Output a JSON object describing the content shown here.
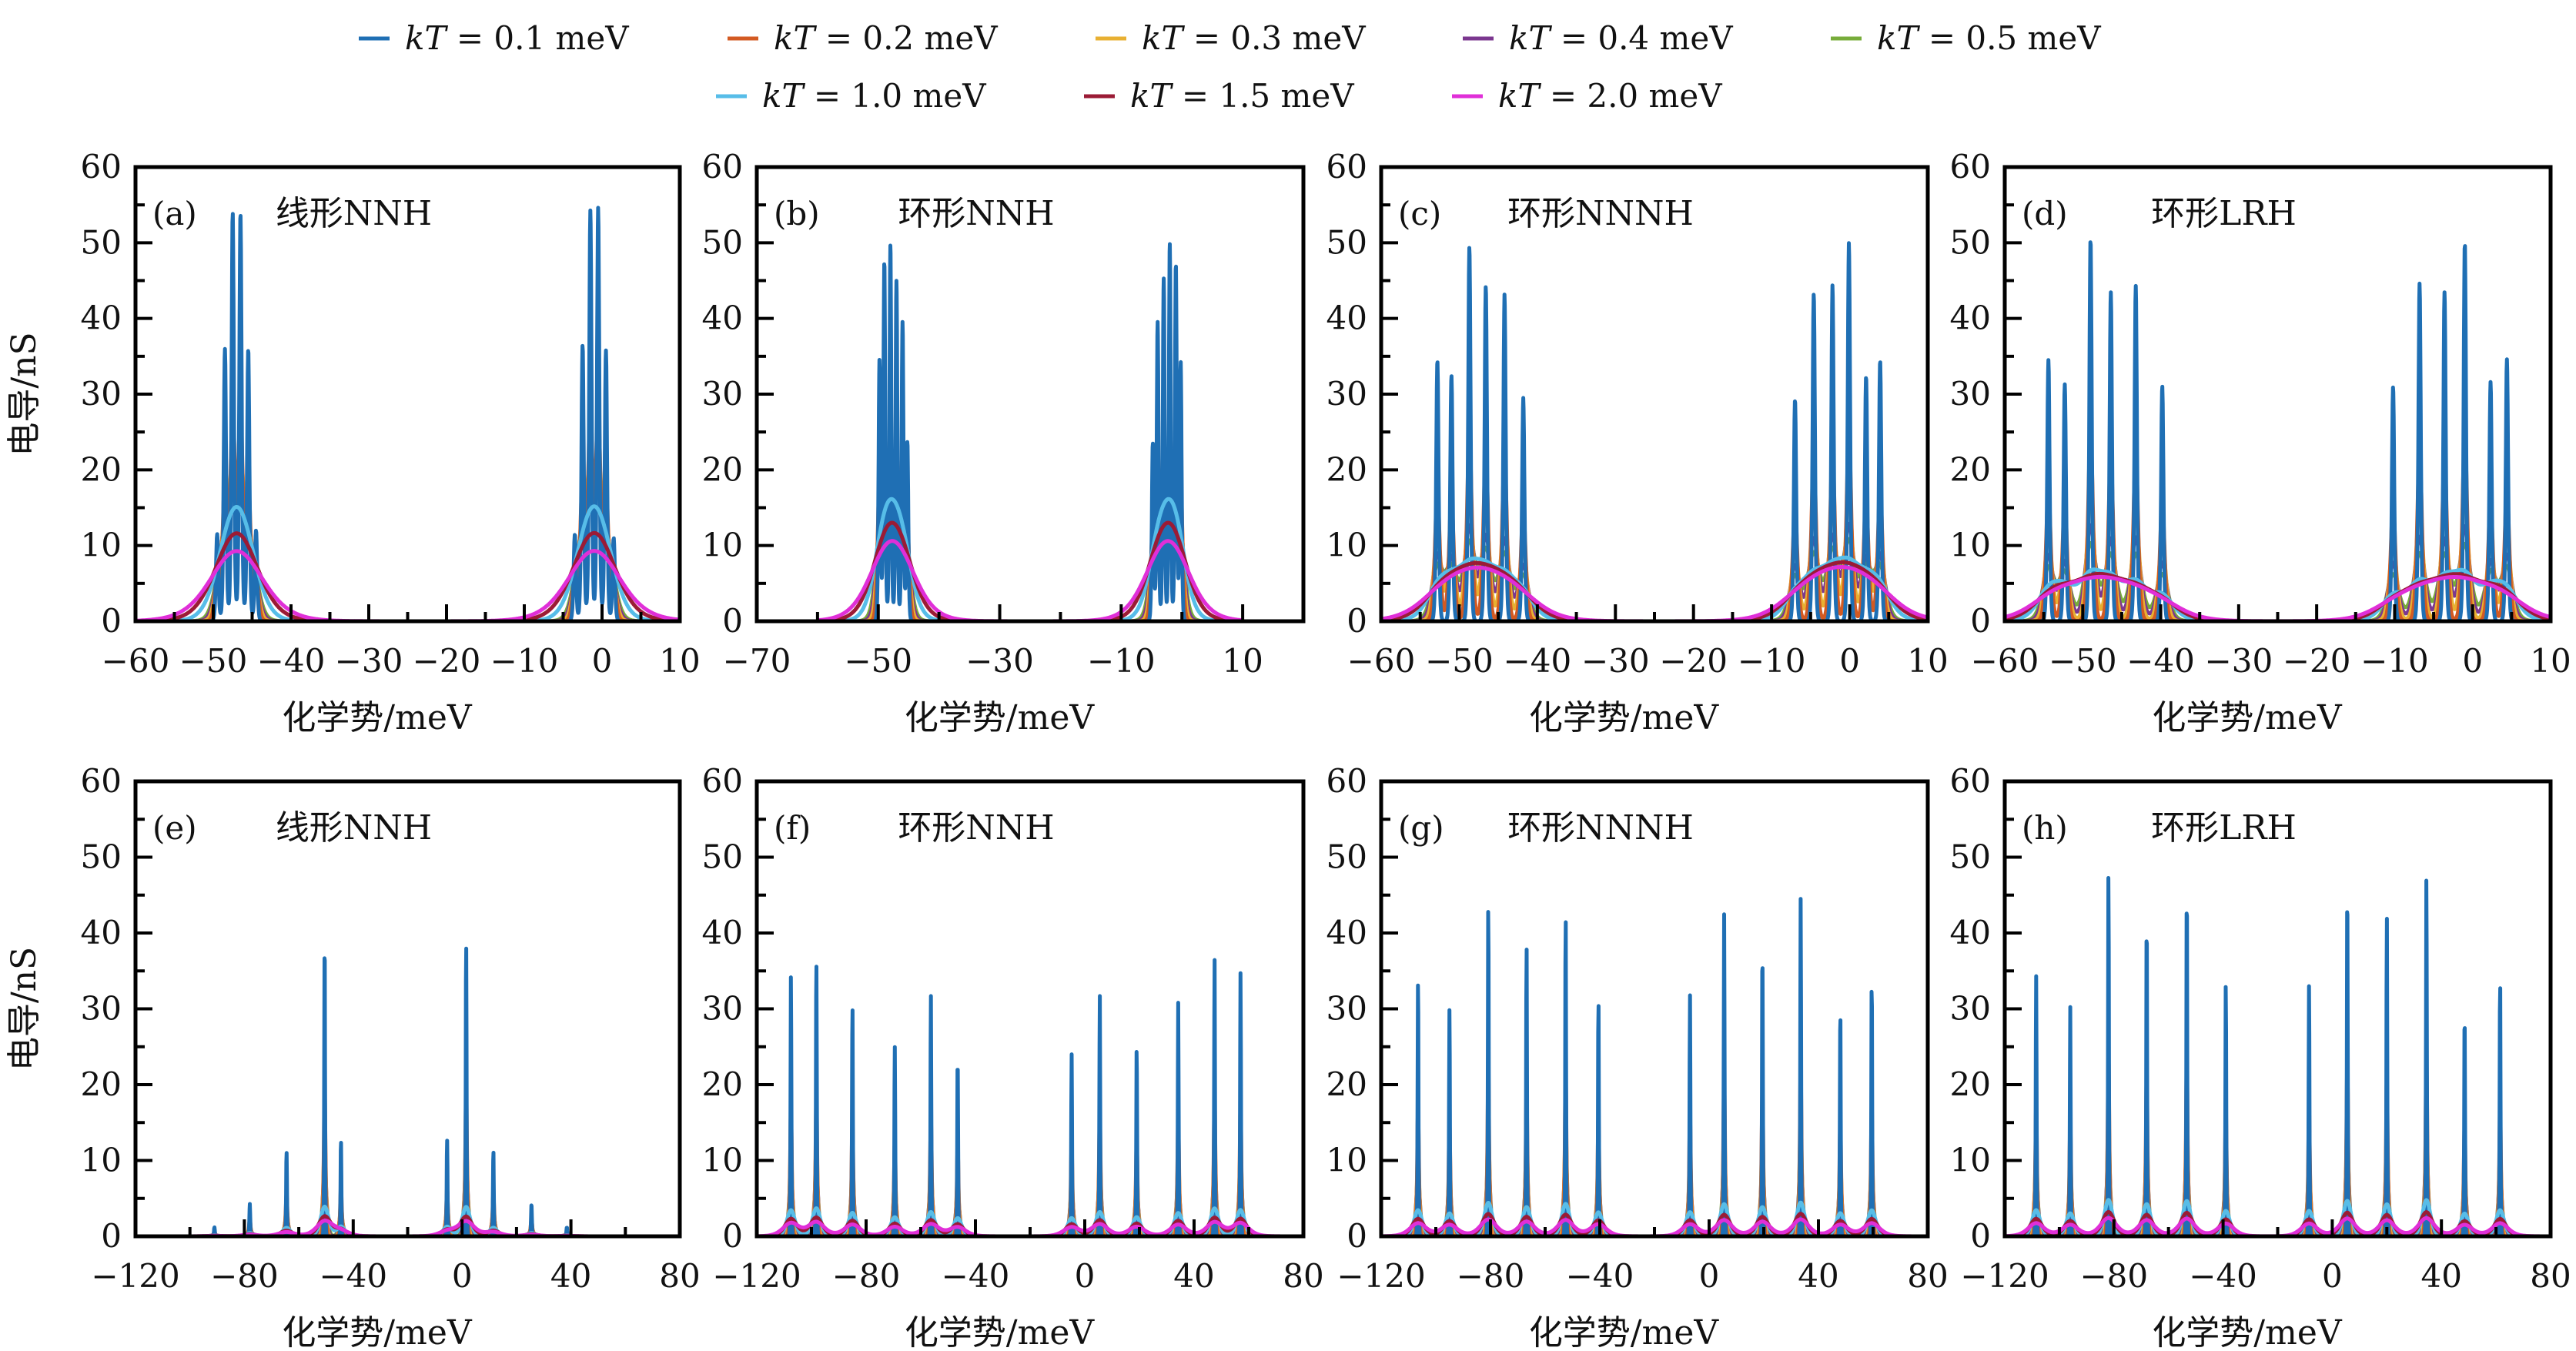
{
  "chart_data": {
    "type": "line",
    "title": "",
    "legend": {
      "placement": "top-center",
      "rows": [
        [
          0,
          1,
          2,
          3,
          4
        ],
        [
          5,
          6,
          7
        ]
      ]
    },
    "series_defs": [
      {
        "name": "kT = 0.1 meV",
        "kT_meV": 0.1,
        "color": "#1f6fb4"
      },
      {
        "name": "kT = 0.2 meV",
        "kT_meV": 0.2,
        "color": "#d35a22"
      },
      {
        "name": "kT = 0.3 meV",
        "kT_meV": 0.3,
        "color": "#e8b032"
      },
      {
        "name": "kT = 0.4 meV",
        "kT_meV": 0.4,
        "color": "#7b378f"
      },
      {
        "name": "kT = 0.5 meV",
        "kT_meV": 0.5,
        "color": "#77ac3a"
      },
      {
        "name": "kT = 1.0 meV",
        "kT_meV": 1.0,
        "color": "#57bde8"
      },
      {
        "name": "kT = 1.5 meV",
        "kT_meV": 1.5,
        "color": "#9b1b35"
      },
      {
        "name": "kT = 2.0 meV",
        "kT_meV": 2.0,
        "color": "#e02fd8"
      }
    ],
    "legend_parts": {
      "prefix": "kT",
      "equals": " = ",
      "unit": " meV"
    },
    "panels": [
      {
        "id": "a",
        "label": "(a)",
        "title": "线形NNH",
        "xlabel": "化学势/meV",
        "ylabel": "电导/nS",
        "xlim": [
          -60,
          10
        ],
        "ylim": [
          0,
          60
        ],
        "xticks": [
          -60,
          -50,
          -40,
          -30,
          -20,
          -10,
          0,
          10
        ],
        "xtick_labels": [
          "−60",
          "−50",
          "−40",
          "−30",
          "−20",
          "−10",
          "0",
          "10"
        ],
        "yticks": [
          0,
          10,
          20,
          30,
          40,
          50,
          60
        ],
        "ytick_labels": [
          "0",
          "10",
          "20",
          "30",
          "40",
          "50",
          "60"
        ],
        "curve_span": [
          -60,
          10
        ],
        "peaks_kT01": [
          {
            "x": -49.5,
            "y": 11.5
          },
          {
            "x": -48.5,
            "y": 36
          },
          {
            "x": -47.5,
            "y": 54
          },
          {
            "x": -46.5,
            "y": 54
          },
          {
            "x": -45.5,
            "y": 36
          },
          {
            "x": -44.5,
            "y": 12
          },
          {
            "x": -3.5,
            "y": 11.5
          },
          {
            "x": -2.5,
            "y": 36.5
          },
          {
            "x": -1.5,
            "y": 54.3
          },
          {
            "x": -0.5,
            "y": 54.6
          },
          {
            "x": 0.5,
            "y": 35.8
          },
          {
            "x": 1.5,
            "y": 11
          }
        ]
      },
      {
        "id": "b",
        "label": "(b)",
        "title": "环形NNH",
        "xlabel": "化学势/meV",
        "ylabel": "",
        "xlim": [
          -70,
          20
        ],
        "ylim": [
          0,
          60
        ],
        "xticks": [
          -70,
          -50,
          -30,
          -10,
          10
        ],
        "xtick_labels": [
          "−70",
          "−50",
          "−30",
          "−10",
          "10"
        ],
        "yticks": [
          0,
          10,
          20,
          30,
          40,
          50,
          60
        ],
        "ytick_labels": [
          "0",
          "10",
          "20",
          "30",
          "40",
          "50",
          "60"
        ],
        "curve_span": [
          -60,
          10
        ],
        "peaks_kT01": [
          {
            "x": -49.8,
            "y": 34.5
          },
          {
            "x": -49.0,
            "y": 47.5
          },
          {
            "x": -48.0,
            "y": 49.8
          },
          {
            "x": -47.0,
            "y": 45
          },
          {
            "x": -46.0,
            "y": 39.5
          },
          {
            "x": -45.2,
            "y": 23.7
          },
          {
            "x": -4.8,
            "y": 23.5
          },
          {
            "x": -4.0,
            "y": 39.5
          },
          {
            "x": -3.0,
            "y": 45.3
          },
          {
            "x": -2.0,
            "y": 50
          },
          {
            "x": -1.0,
            "y": 47.2
          },
          {
            "x": -0.2,
            "y": 34.2
          }
        ]
      },
      {
        "id": "c",
        "label": "(c)",
        "title": "环形NNNH",
        "xlabel": "化学势/meV",
        "ylabel": "",
        "xlim": [
          -60,
          10
        ],
        "ylim": [
          0,
          60
        ],
        "xticks": [
          -60,
          -50,
          -40,
          -30,
          -20,
          -10,
          0,
          10
        ],
        "xtick_labels": [
          "−60",
          "−50",
          "−40",
          "−30",
          "−20",
          "−10",
          "0",
          "10"
        ],
        "yticks": [
          0,
          10,
          20,
          30,
          40,
          50,
          60
        ],
        "ytick_labels": [
          "0",
          "10",
          "20",
          "30",
          "40",
          "50",
          "60"
        ],
        "curve_span": [
          -60,
          10
        ],
        "peaks_kT01": [
          {
            "x": -52.8,
            "y": 34.5
          },
          {
            "x": -51.0,
            "y": 32.5
          },
          {
            "x": -48.7,
            "y": 49.5
          },
          {
            "x": -46.6,
            "y": 44.3
          },
          {
            "x": -44.2,
            "y": 43.2
          },
          {
            "x": -41.8,
            "y": 29.5
          },
          {
            "x": -7.0,
            "y": 29.3
          },
          {
            "x": -4.6,
            "y": 43.3
          },
          {
            "x": -2.2,
            "y": 44.4
          },
          {
            "x": -0.1,
            "y": 50
          },
          {
            "x": 2.1,
            "y": 32.4
          },
          {
            "x": 3.9,
            "y": 34.5
          }
        ]
      },
      {
        "id": "d",
        "label": "(d)",
        "title": "环形LRH",
        "xlabel": "化学势/meV",
        "ylabel": "",
        "xlim": [
          -60,
          10
        ],
        "ylim": [
          0,
          60
        ],
        "xticks": [
          -60,
          -50,
          -40,
          -30,
          -20,
          -10,
          0,
          10
        ],
        "xtick_labels": [
          "−60",
          "−50",
          "−40",
          "−30",
          "−20",
          "−10",
          "0",
          "10"
        ],
        "yticks": [
          0,
          10,
          20,
          30,
          40,
          50,
          60
        ],
        "ytick_labels": [
          "0",
          "10",
          "20",
          "30",
          "40",
          "50",
          "60"
        ],
        "curve_span": [
          -60,
          10
        ],
        "peaks_kT01": [
          {
            "x": -54.4,
            "y": 34.5
          },
          {
            "x": -52.3,
            "y": 31.3
          },
          {
            "x": -49.0,
            "y": 50.5
          },
          {
            "x": -46.4,
            "y": 43.5
          },
          {
            "x": -43.2,
            "y": 44.3
          },
          {
            "x": -39.8,
            "y": 31.1
          },
          {
            "x": -10.2,
            "y": 31
          },
          {
            "x": -6.8,
            "y": 44.6
          },
          {
            "x": -3.6,
            "y": 43.5
          },
          {
            "x": -1.0,
            "y": 50
          },
          {
            "x": 2.3,
            "y": 31.6
          },
          {
            "x": 4.4,
            "y": 34.6
          }
        ]
      },
      {
        "id": "e",
        "label": "(e)",
        "title": "线形NNH",
        "xlabel": "化学势/meV",
        "ylabel": "电导/nS",
        "xlim": [
          -120,
          80
        ],
        "ylim": [
          0,
          60
        ],
        "xticks": [
          -120,
          -80,
          -40,
          0,
          40,
          80
        ],
        "xtick_labels": [
          "−120",
          "−80",
          "−40",
          "0",
          "40",
          "80"
        ],
        "yticks": [
          0,
          10,
          20,
          30,
          40,
          50,
          60
        ],
        "ytick_labels": [
          "0",
          "10",
          "20",
          "30",
          "40",
          "50",
          "60"
        ],
        "curve_span": [
          -105,
          60
        ],
        "peaks_kT01": [
          {
            "x": -91,
            "y": 1.2
          },
          {
            "x": -78,
            "y": 4.3
          },
          {
            "x": -64.5,
            "y": 11.2
          },
          {
            "x": -50.5,
            "y": 39
          },
          {
            "x": -44.5,
            "y": 12.7
          },
          {
            "x": -5.5,
            "y": 12.7
          },
          {
            "x": 1.5,
            "y": 38.7
          },
          {
            "x": 11.5,
            "y": 11.3
          },
          {
            "x": 25.5,
            "y": 4.3
          },
          {
            "x": 38.5,
            "y": 1.2
          }
        ]
      },
      {
        "id": "f",
        "label": "(f)",
        "title": "环形NNH",
        "xlabel": "化学势/meV",
        "ylabel": "",
        "xlim": [
          -120,
          80
        ],
        "ylim": [
          0,
          60
        ],
        "xticks": [
          -120,
          -80,
          -40,
          0,
          40,
          80
        ],
        "xtick_labels": [
          "−120",
          "−80",
          "−40",
          "0",
          "40",
          "80"
        ],
        "yticks": [
          0,
          10,
          20,
          30,
          40,
          50,
          60
        ],
        "ytick_labels": [
          "0",
          "10",
          "20",
          "30",
          "40",
          "50",
          "60"
        ],
        "curve_span": [
          -120,
          72
        ],
        "peaks_kT01": [
          {
            "x": -107.5,
            "y": 34.5
          },
          {
            "x": -98.2,
            "y": 37
          },
          {
            "x": -85,
            "y": 31
          },
          {
            "x": -69.5,
            "y": 25.2
          },
          {
            "x": -56.3,
            "y": 32
          },
          {
            "x": -46.5,
            "y": 24
          },
          {
            "x": -4.8,
            "y": 24
          },
          {
            "x": 5.5,
            "y": 32
          },
          {
            "x": 19,
            "y": 25.3
          },
          {
            "x": 34.2,
            "y": 30.8
          },
          {
            "x": 47.5,
            "y": 36.8
          },
          {
            "x": 57,
            "y": 34.7
          }
        ]
      },
      {
        "id": "g",
        "label": "(g)",
        "title": "环形NNNH",
        "xlabel": "化学势/meV",
        "ylabel": "",
        "xlim": [
          -120,
          80
        ],
        "ylim": [
          0,
          60
        ],
        "xticks": [
          -120,
          -80,
          -40,
          0,
          40,
          80
        ],
        "xtick_labels": [
          "−120",
          "−80",
          "−40",
          "0",
          "40",
          "80"
        ],
        "yticks": [
          0,
          10,
          20,
          30,
          40,
          50,
          60
        ],
        "ytick_labels": [
          "0",
          "10",
          "20",
          "30",
          "40",
          "50",
          "60"
        ],
        "curve_span": [
          -120,
          74
        ],
        "peaks_kT01": [
          {
            "x": -106.5,
            "y": 34.5
          },
          {
            "x": -95,
            "y": 30.2
          },
          {
            "x": -80.8,
            "y": 44.2
          },
          {
            "x": -66.8,
            "y": 38.6
          },
          {
            "x": -52.5,
            "y": 42.8
          },
          {
            "x": -40.5,
            "y": 31.6
          },
          {
            "x": -7,
            "y": 31.8
          },
          {
            "x": 5.5,
            "y": 42.5
          },
          {
            "x": 19.5,
            "y": 38.5
          },
          {
            "x": 33.5,
            "y": 44.5
          },
          {
            "x": 48,
            "y": 30.5
          },
          {
            "x": 59.5,
            "y": 34.3
          }
        ]
      },
      {
        "id": "h",
        "label": "(h)",
        "title": "环形LRH",
        "xlabel": "化学势/meV",
        "ylabel": "",
        "xlim": [
          -120,
          80
        ],
        "ylim": [
          0,
          60
        ],
        "xticks": [
          -120,
          -80,
          -40,
          0,
          40,
          80
        ],
        "xtick_labels": [
          "−120",
          "−80",
          "−40",
          "0",
          "40",
          "80"
        ],
        "yticks": [
          0,
          10,
          20,
          30,
          40,
          50,
          60
        ],
        "ytick_labels": [
          "0",
          "10",
          "20",
          "30",
          "40",
          "50",
          "60"
        ],
        "curve_span": [
          -120,
          76
        ],
        "peaks_kT01": [
          {
            "x": -108.5,
            "y": 34.5
          },
          {
            "x": -96,
            "y": 30.3
          },
          {
            "x": -82,
            "y": 48
          },
          {
            "x": -68,
            "y": 42.5
          },
          {
            "x": -53.3,
            "y": 46.5
          },
          {
            "x": -39,
            "y": 33.5
          },
          {
            "x": -8.5,
            "y": 33.5
          },
          {
            "x": 5.5,
            "y": 46.7
          },
          {
            "x": 20,
            "y": 42.2
          },
          {
            "x": 34.5,
            "y": 47.8
          },
          {
            "x": 48.5,
            "y": 30
          },
          {
            "x": 61.5,
            "y": 34.4
          }
        ]
      }
    ]
  }
}
